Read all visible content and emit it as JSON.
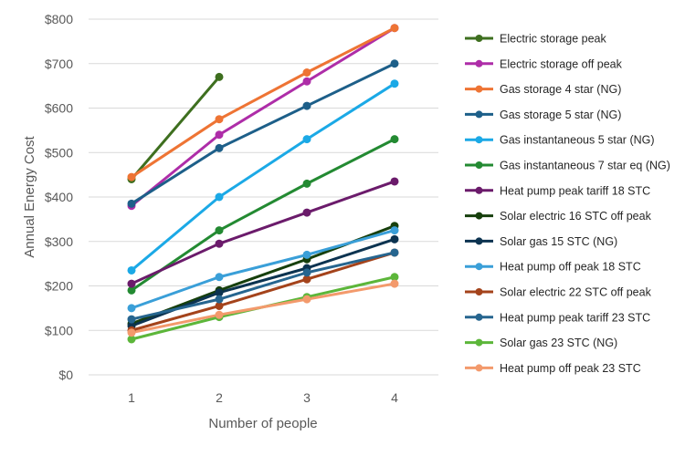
{
  "chart_data": {
    "type": "line",
    "title": "",
    "xlabel": "Number of people",
    "ylabel": "Annual Energy Cost",
    "categories": [
      "1",
      "2",
      "3",
      "4"
    ],
    "ylim": [
      0,
      800
    ],
    "yticks": [
      0,
      100,
      200,
      300,
      400,
      500,
      600,
      700,
      800
    ],
    "ytick_labels": [
      "$0",
      "$100",
      "$200",
      "$300",
      "$400",
      "$500",
      "$600",
      "$700",
      "$800"
    ],
    "grid": "horizontal",
    "legend_position": "right",
    "series": [
      {
        "name": "Electric storage peak",
        "color": "#3e6f1f",
        "values": [
          440,
          670,
          null,
          null
        ]
      },
      {
        "name": "Electric storage off peak",
        "color": "#ae2da8",
        "values": [
          380,
          540,
          660,
          780
        ]
      },
      {
        "name": "Gas storage 4 star (NG)",
        "color": "#ee7434",
        "values": [
          445,
          575,
          680,
          780
        ]
      },
      {
        "name": "Gas storage 5 star (NG)",
        "color": "#1d5f89",
        "values": [
          385,
          510,
          605,
          700
        ]
      },
      {
        "name": "Gas instantaneous 5 star (NG)",
        "color": "#1ba9e6",
        "values": [
          235,
          400,
          530,
          655
        ]
      },
      {
        "name": "Gas instantaneous 7 star eq (NG)",
        "color": "#238a32",
        "values": [
          190,
          325,
          430,
          530
        ]
      },
      {
        "name": "Heat pump peak tariff 18 STC",
        "color": "#6b1b6b",
        "values": [
          205,
          295,
          365,
          435
        ]
      },
      {
        "name": "Solar electric 16 STC off peak",
        "color": "#163f0c",
        "values": [
          115,
          190,
          260,
          335
        ]
      },
      {
        "name": "Solar gas 15 STC (NG)",
        "color": "#0c3350",
        "values": [
          110,
          185,
          240,
          305
        ]
      },
      {
        "name": "Heat pump off peak 18 STC",
        "color": "#3a9fd8",
        "values": [
          150,
          220,
          270,
          325
        ]
      },
      {
        "name": "Solar electric 22 STC off peak",
        "color": "#a4431b",
        "values": [
          100,
          155,
          215,
          275
        ]
      },
      {
        "name": "Heat pump peak tariff 23 STC",
        "color": "#26658f",
        "values": [
          125,
          170,
          230,
          275
        ]
      },
      {
        "name": "Solar gas 23 STC (NG)",
        "color": "#5cb63a",
        "values": [
          80,
          130,
          175,
          220
        ]
      },
      {
        "name": "Heat pump off peak 23 STC",
        "color": "#f39a6c",
        "values": [
          95,
          135,
          170,
          205
        ]
      }
    ]
  }
}
